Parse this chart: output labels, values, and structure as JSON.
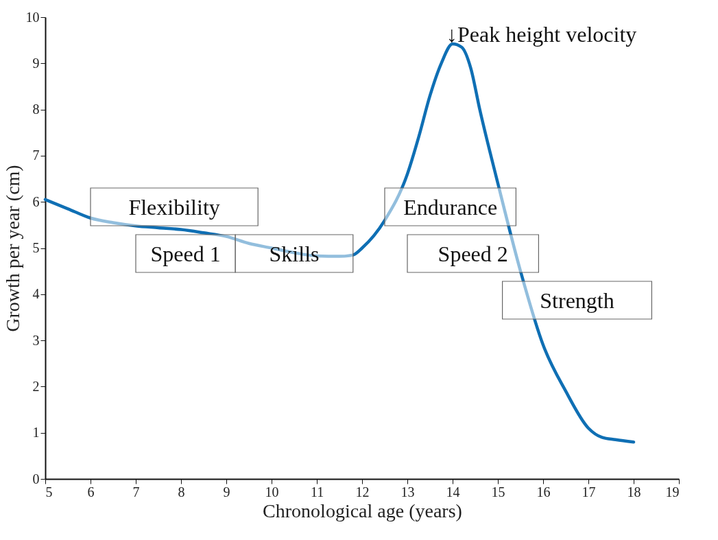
{
  "chart_data": {
    "type": "line",
    "xlabel": "Chronological age (years)",
    "ylabel": "Growth per year (cm)",
    "x": [
      5,
      5.5,
      6,
      6.5,
      7,
      7.5,
      8,
      8.5,
      9,
      9.5,
      10,
      10.5,
      11,
      11.5,
      11.8,
      12,
      12.5,
      13,
      13.25,
      13.5,
      13.75,
      14,
      14.2,
      14.4,
      14.6,
      15,
      15.5,
      16,
      16.5,
      17,
      17.3,
      17.6,
      18
    ],
    "series": [
      {
        "color": "#0f6fb4",
        "values": [
          6.05,
          5.85,
          5.65,
          5.55,
          5.48,
          5.44,
          5.4,
          5.33,
          5.25,
          5.1,
          5.0,
          4.9,
          4.83,
          4.82,
          4.85,
          5.0,
          5.6,
          6.6,
          7.4,
          8.3,
          9.0,
          9.42,
          9.35,
          8.9,
          8.0,
          6.4,
          4.5,
          2.9,
          1.9,
          1.1,
          0.9,
          0.85,
          0.8
        ]
      }
    ],
    "xlim": [
      5,
      19
    ],
    "xticks": [
      5,
      6,
      7,
      8,
      9,
      10,
      11,
      12,
      13,
      14,
      15,
      16,
      17,
      18,
      19
    ],
    "ylim": [
      0,
      10
    ],
    "yticks": [
      0,
      1,
      2,
      3,
      4,
      5,
      6,
      7,
      8,
      9,
      10
    ],
    "grid": false,
    "marker": "none",
    "line_style": "solid",
    "bands": [
      {
        "axis": "x",
        "from": 6,
        "to": 9.7,
        "label": "Flexibility"
      },
      {
        "axis": "x",
        "from": 7,
        "to": 9.2,
        "label": "Speed 1"
      },
      {
        "axis": "x",
        "from": 9.2,
        "to": 11.8,
        "label": "Skills"
      },
      {
        "axis": "x",
        "from": 12.5,
        "to": 15.4,
        "label": "Endurance"
      },
      {
        "axis": "x",
        "from": 13,
        "to": 15.9,
        "label": "Speed 2"
      },
      {
        "axis": "x",
        "from": 15.1,
        "to": 18.4,
        "label": "Strength"
      }
    ],
    "annotations": [
      {
        "text": "↓Peak height velocity",
        "x": 14,
        "y": 9.42
      }
    ]
  }
}
